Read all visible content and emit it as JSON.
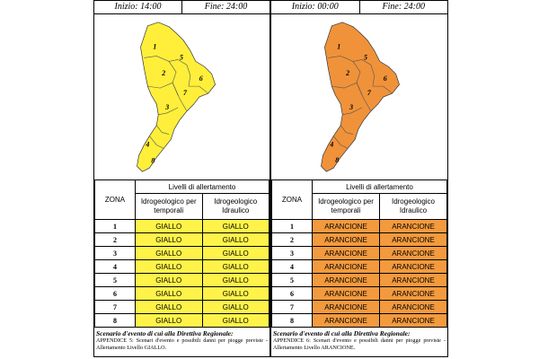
{
  "left": {
    "timebar": {
      "start": "Inizio: 14:00",
      "end": "Fine: 24:00"
    },
    "map_color": "#ffef3a",
    "zone_labels": [
      "1",
      "2",
      "3",
      "4",
      "5",
      "6",
      "7",
      "8"
    ],
    "table": {
      "zona_header": "ZONA",
      "levels_header": "Livelli di allertamento",
      "col1_header": "Idrogeologico per temporali",
      "col2_header": "Idrogeologico Idraulico",
      "rows": [
        {
          "zone": "1",
          "v1": "GIALLO",
          "v2": "GIALLO"
        },
        {
          "zone": "2",
          "v1": "GIALLO",
          "v2": "GIALLO"
        },
        {
          "zone": "3",
          "v1": "GIALLO",
          "v2": "GIALLO"
        },
        {
          "zone": "4",
          "v1": "GIALLO",
          "v2": "GIALLO"
        },
        {
          "zone": "5",
          "v1": "GIALLO",
          "v2": "GIALLO"
        },
        {
          "zone": "6",
          "v1": "GIALLO",
          "v2": "GIALLO"
        },
        {
          "zone": "7",
          "v1": "GIALLO",
          "v2": "GIALLO"
        },
        {
          "zone": "8",
          "v1": "GIALLO",
          "v2": "GIALLO"
        }
      ],
      "cell_color": "#fff34a"
    },
    "scenario": {
      "title": "Scenario d'evento di cui alla Direttiva Regionale:",
      "body": "APPENDICE 5: Scenari d'evento e possibili danni per piogge previste - Allertamento Livello GIALLO."
    }
  },
  "right": {
    "timebar": {
      "start": "Inizio: 00:00",
      "end": "Fine: 24:00"
    },
    "map_color": "#f0923a",
    "zone_labels": [
      "1",
      "2",
      "3",
      "4",
      "5",
      "6",
      "7",
      "8"
    ],
    "table": {
      "zona_header": "ZONA",
      "levels_header": "Livelli di allertamento",
      "col1_header": "Idrogeologico per temporali",
      "col2_header": "Idrogeologico Idraulico",
      "rows": [
        {
          "zone": "1",
          "v1": "ARANCIONE",
          "v2": "ARANCIONE"
        },
        {
          "zone": "2",
          "v1": "ARANCIONE",
          "v2": "ARANCIONE"
        },
        {
          "zone": "3",
          "v1": "ARANCIONE",
          "v2": "ARANCIONE"
        },
        {
          "zone": "4",
          "v1": "ARANCIONE",
          "v2": "ARANCIONE"
        },
        {
          "zone": "5",
          "v1": "ARANCIONE",
          "v2": "ARANCIONE"
        },
        {
          "zone": "6",
          "v1": "ARANCIONE",
          "v2": "ARANCIONE"
        },
        {
          "zone": "7",
          "v1": "ARANCIONE",
          "v2": "ARANCIONE"
        },
        {
          "zone": "8",
          "v1": "ARANCIONE",
          "v2": "ARANCIONE"
        }
      ],
      "cell_color": "#f39a3e"
    },
    "scenario": {
      "title": "Scenario d'evento di cui alla Direttiva Regionale:",
      "body": "APPENDICE 6: Scenari d'evento e possibili danni per piogge previste - Allertamento Livello ARANCIONE."
    }
  }
}
